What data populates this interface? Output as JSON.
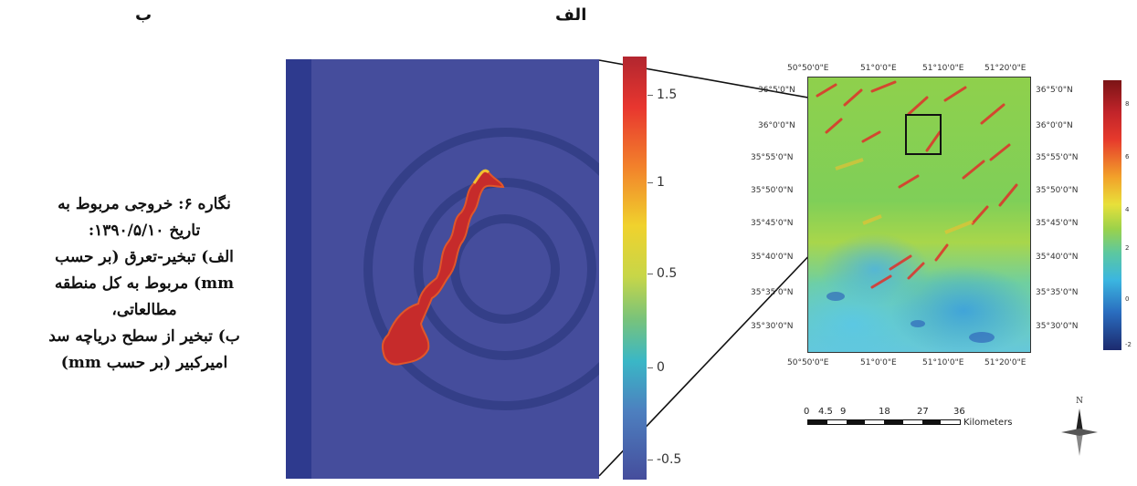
{
  "labels": {
    "panel_a": "الف",
    "panel_b": "ب"
  },
  "caption": [
    "نگاره ۶: خروجی مربوط به",
    "تاریخ ۱۳۹۰/۵/۱۰:",
    "الف) تبخیر-تعرق (بر حسب",
    "mm) مربوط به کل منطقه",
    "مطالعاتی،",
    "ب) تبخیر از سطح دریاچه سد",
    "امیرکبیر (بر حسب mm)"
  ],
  "colorbar_b": {
    "ticks": [
      "1.5",
      "1",
      "0.5",
      "0",
      "-0.5"
    ]
  },
  "map_a": {
    "top_ticks": [
      "50°50'0\"E",
      "51°0'0\"E",
      "51°10'0\"E",
      "51°20'0\"E"
    ],
    "bottom_ticks": [
      "50°50'0\"E",
      "51°0'0\"E",
      "51°10'0\"E",
      "51°20'0\"E"
    ],
    "left_ticks": [
      "36°5'0\"N",
      "36°0'0\"N",
      "35°55'0\"N",
      "35°50'0\"N",
      "35°45'0\"N",
      "35°40'0\"N",
      "35°35'0\"N",
      "35°30'0\"N"
    ],
    "right_ticks": [
      "36°5'0\"N",
      "36°0'0\"N",
      "35°55'0\"N",
      "35°50'0\"N",
      "35°45'0\"N",
      "35°40'0\"N",
      "35°35'0\"N",
      "35°30'0\"N"
    ]
  },
  "colorbar_a": {
    "ticks": [
      "8",
      "6",
      "4",
      "2",
      "0",
      "-2"
    ]
  },
  "scalebar": {
    "numbers": [
      "0",
      "4.5",
      "9",
      "18",
      "27",
      "36"
    ],
    "unit": "Kilometers"
  },
  "north": "N"
}
